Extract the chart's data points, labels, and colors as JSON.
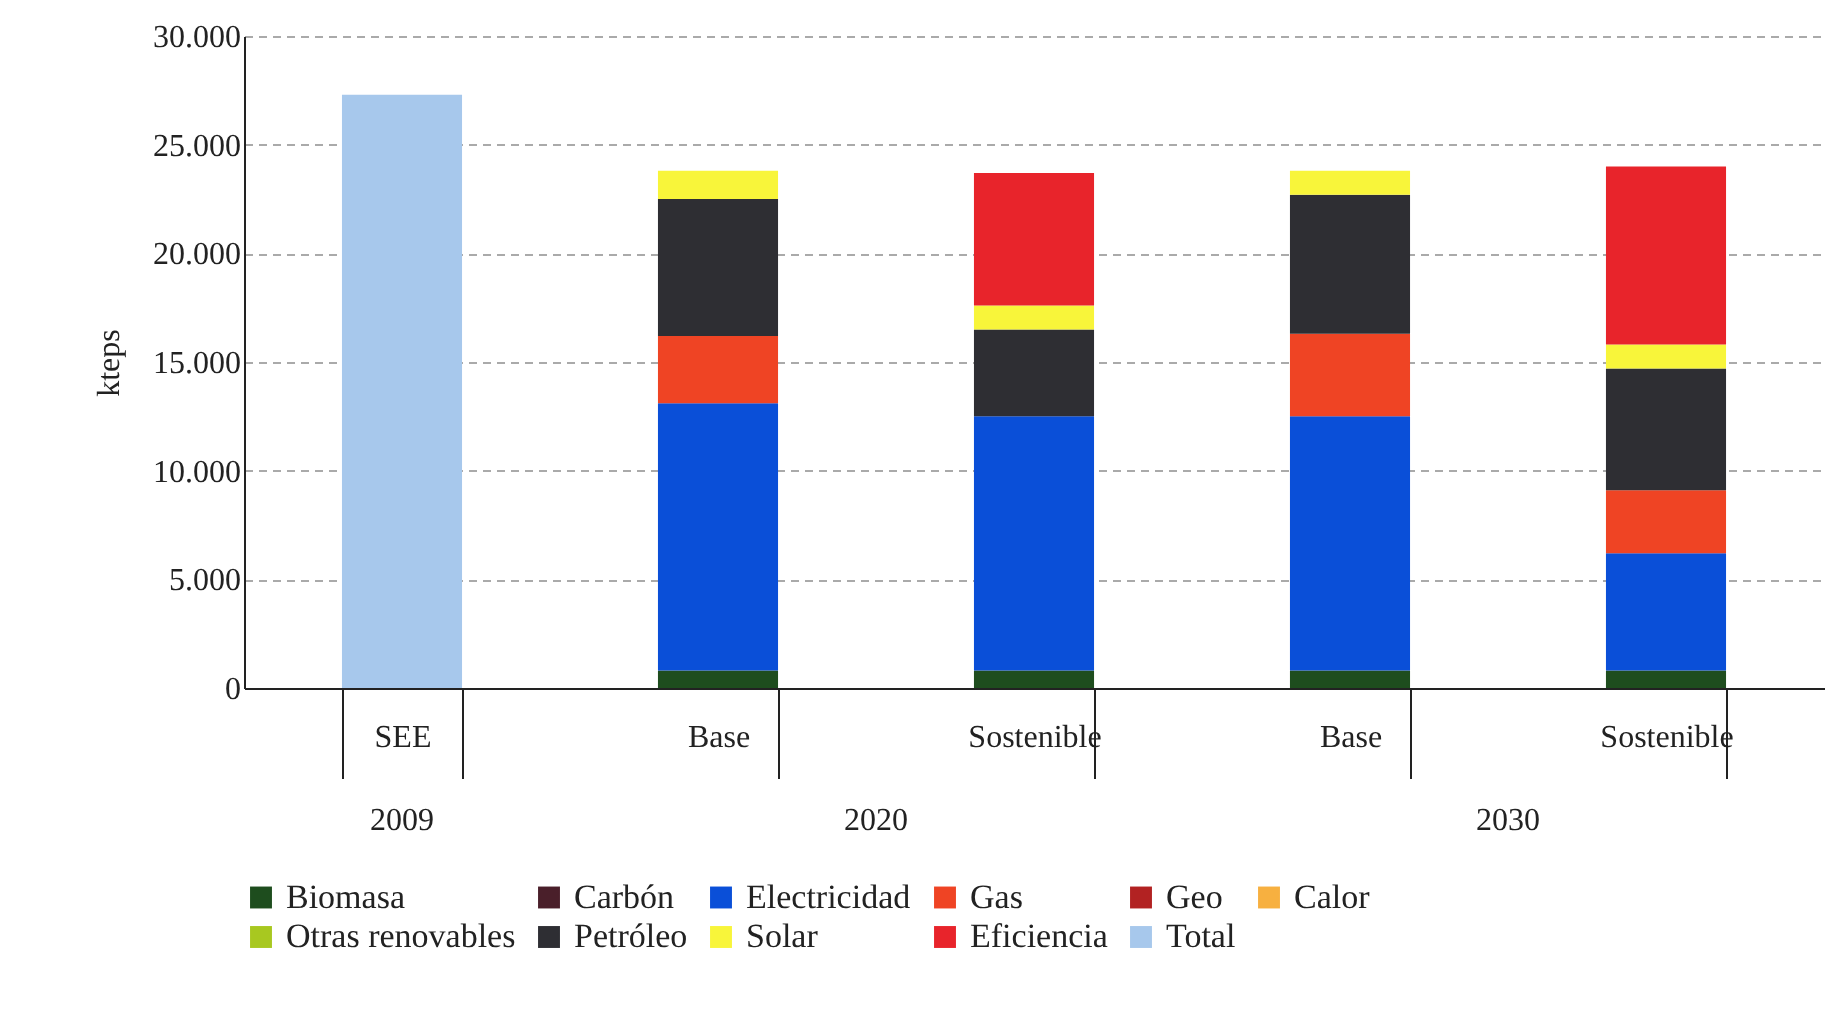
{
  "chart_data": {
    "type": "bar",
    "stacked": true,
    "ylabel": "kteps",
    "categories": [
      "SEE",
      "Base",
      "Sostenible",
      "Base",
      "Sostenible"
    ],
    "annotations": [
      "2009",
      "2020",
      "2030"
    ],
    "series": [
      {
        "name": "Biomasa",
        "color": "#1e4d1e",
        "values": [
          null,
          800,
          800,
          800,
          800
        ]
      },
      {
        "name": "Carbón",
        "color": "#4a1f2a",
        "values": [
          null,
          null,
          null,
          null,
          null
        ]
      },
      {
        "name": "Electricidad",
        "color": "#0a4fd8",
        "values": [
          null,
          12300,
          11700,
          11700,
          5400
        ]
      },
      {
        "name": "Gas",
        "color": "#ef4424",
        "values": [
          null,
          3100,
          null,
          3800,
          2900
        ]
      },
      {
        "name": "Geo",
        "color": "#b22222",
        "values": [
          null,
          null,
          null,
          null,
          null
        ]
      },
      {
        "name": "Calor",
        "color": "#f7b040",
        "values": [
          null,
          null,
          null,
          null,
          null
        ]
      },
      {
        "name": "Otras renovables",
        "color": "#a8c820",
        "values": [
          null,
          null,
          null,
          null,
          null
        ]
      },
      {
        "name": "Petróleo",
        "color": "#2e2e33",
        "values": [
          null,
          6300,
          4000,
          6400,
          5600
        ]
      },
      {
        "name": "Solar",
        "color": "#f8f53a",
        "values": [
          null,
          1300,
          1100,
          1100,
          1100
        ]
      },
      {
        "name": "Eficiencia",
        "color": "#e8242b",
        "values": [
          null,
          null,
          6100,
          null,
          8200
        ]
      },
      {
        "name": "Total",
        "color": "#a7c8ec",
        "values": [
          27300,
          null,
          null,
          null,
          null
        ]
      }
    ],
    "ylim": [
      0,
      30000
    ],
    "yticks": [
      0,
      {
        "value": 5000,
        "label": "5.000"
      },
      {
        "value": 10000,
        "label": "10.000"
      },
      {
        "value": 15000,
        "label": "15.000"
      },
      {
        "value": 20000,
        "label": "20.000"
      },
      {
        "value": 25000,
        "label": "25.000"
      },
      {
        "value": 30000,
        "label": "30.000"
      }
    ],
    "grid": "y",
    "legend": "bottom"
  }
}
